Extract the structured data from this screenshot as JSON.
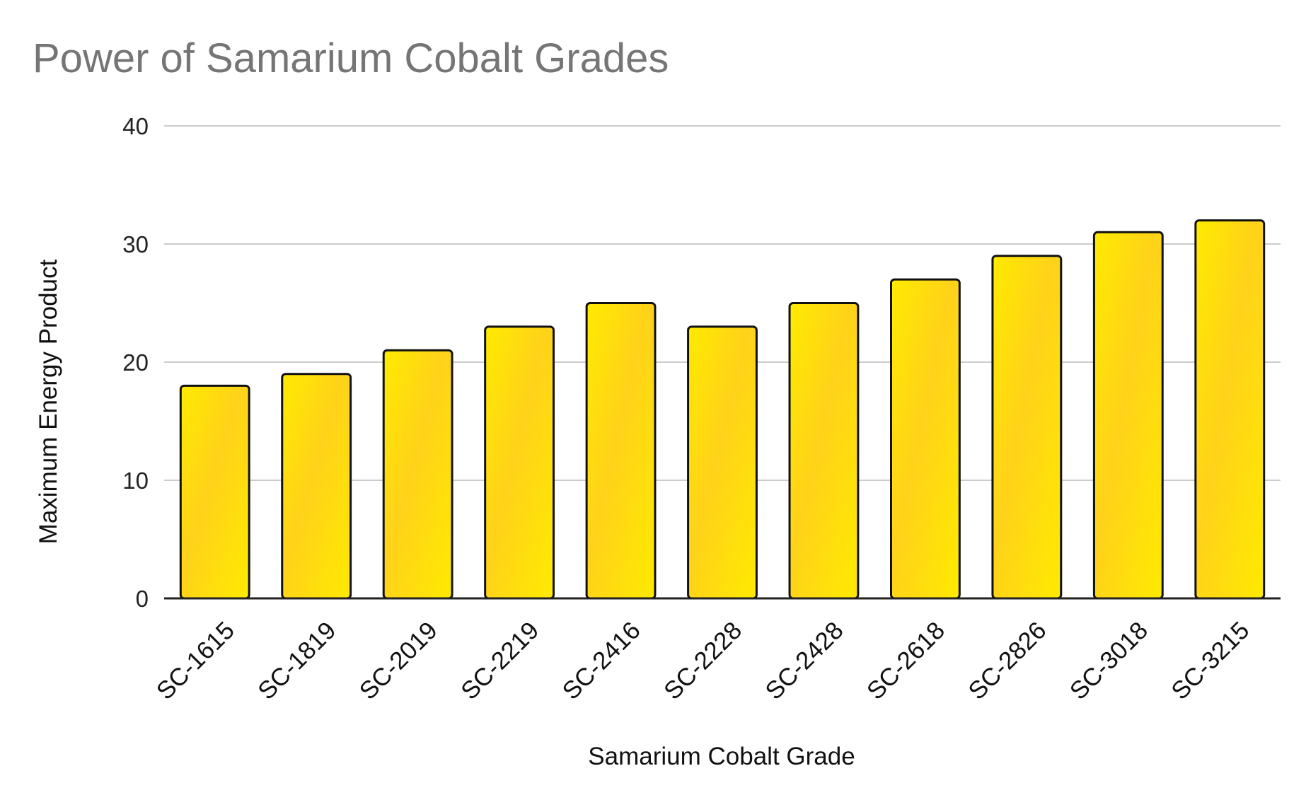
{
  "chart_data": {
    "type": "bar",
    "title": "Power of Samarium Cobalt Grades",
    "xlabel": "Samarium Cobalt Grade",
    "ylabel": "Maximum Energy Product",
    "categories": [
      "SC-1615",
      "SC-1819",
      "SC-2019",
      "SC-2219",
      "SC-2416",
      "SC-2228",
      "SC-2428",
      "SC-2618",
      "SC-2826",
      "SC-3018",
      "SC-3215"
    ],
    "values": [
      18,
      19,
      21,
      23,
      25,
      23,
      25,
      27,
      29,
      31,
      32
    ],
    "ylim": [
      0,
      40
    ],
    "yticks": [
      0,
      10,
      20,
      30,
      40
    ],
    "grid": true,
    "legend": "none",
    "colors": {
      "bar_fill": "#FFD21A",
      "bar_highlight": "#FFEA00",
      "bar_stroke": "#111111",
      "title": "#757575",
      "grid": "#cccccc"
    }
  }
}
